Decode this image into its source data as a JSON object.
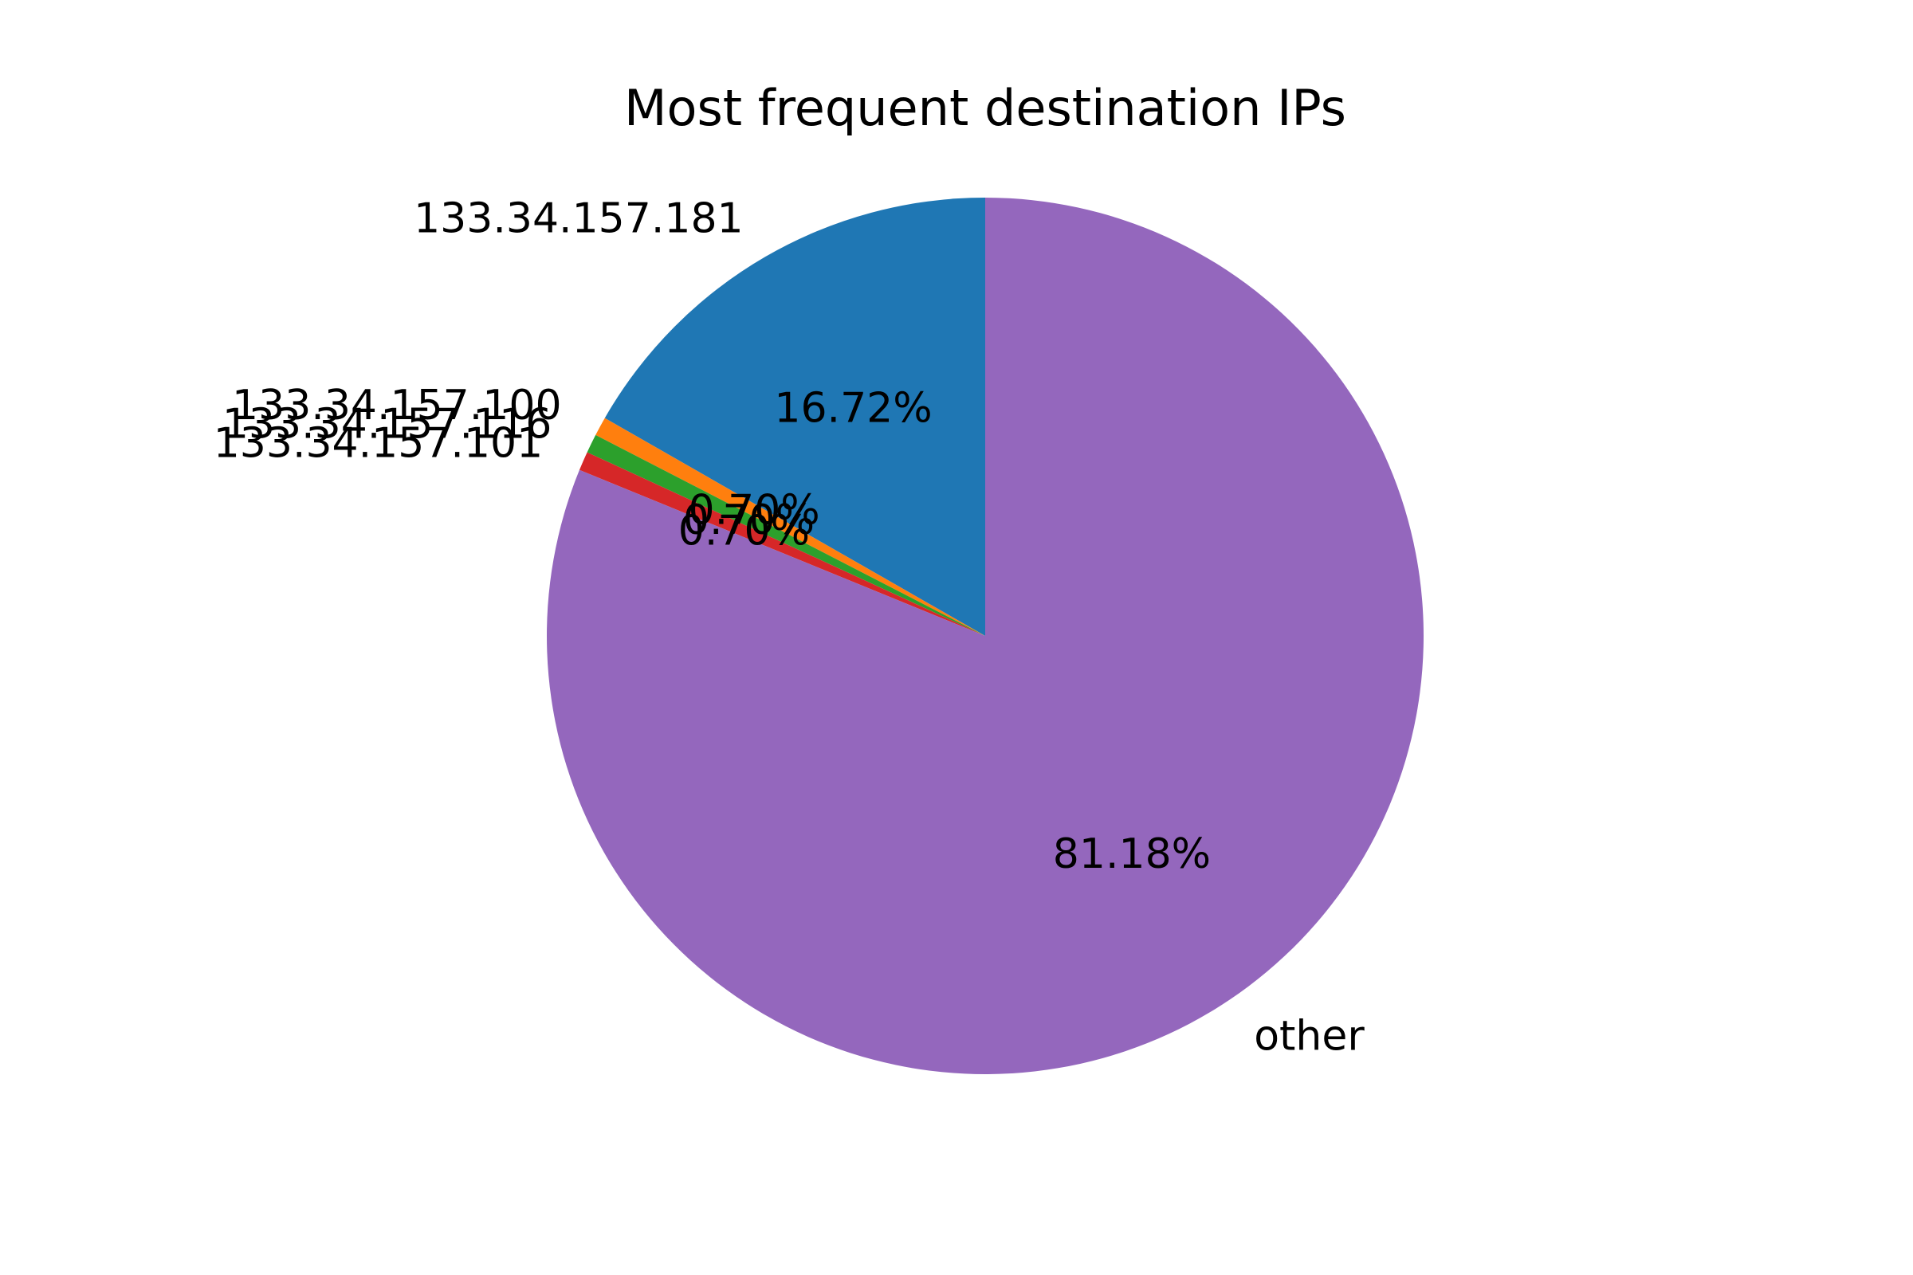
{
  "chart_data": {
    "type": "pie",
    "title": "Most frequent destination IPs",
    "start_angle_deg": 90,
    "direction": "counterclockwise",
    "slices": [
      {
        "label": "133.34.157.181",
        "value": 16.72,
        "pct_text": "16.72%",
        "color": "#1f77b4"
      },
      {
        "label": "133.34.157.100",
        "value": 0.7,
        "pct_text": "0.70%",
        "color": "#ff7f0e"
      },
      {
        "label": "133.34.157.116",
        "value": 0.7,
        "pct_text": "0.70%",
        "color": "#2ca02c"
      },
      {
        "label": "133.34.157.101",
        "value": 0.7,
        "pct_text": "0.70%",
        "color": "#d62728"
      },
      {
        "label": "other",
        "value": 81.18,
        "pct_text": "81.18%",
        "color": "#9467bd"
      }
    ]
  }
}
